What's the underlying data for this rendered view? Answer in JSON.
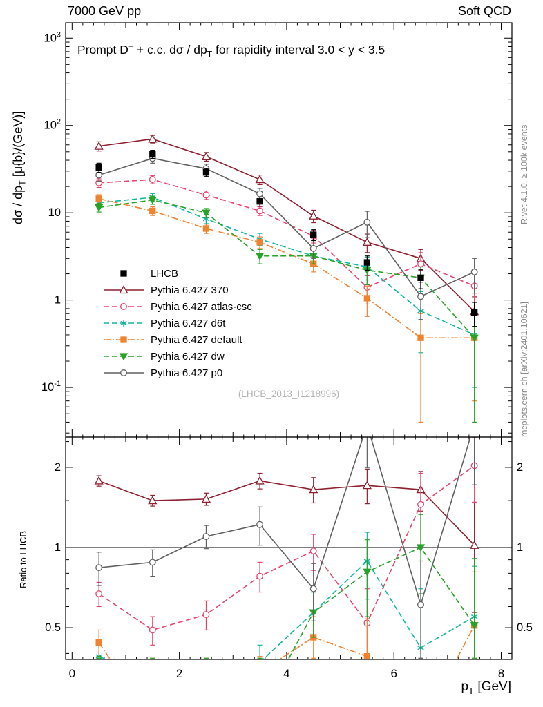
{
  "header": {
    "left": "7000 GeV pp",
    "right": "Soft QCD"
  },
  "side_notes": {
    "top": "Rivet 4.1.0, ≥ 100k events",
    "bottom": "mcplots.cern.ch [arXiv:2401.10621]"
  },
  "watermark": "(LHCB_2013_I1218996)",
  "title_parts": {
    "pre": "Prompt D",
    "sup": "+",
    "mid": " + c.c.  dσ / dp",
    "sub": "T",
    "post": " for rapidity interval 3.0 < y < 3.5"
  },
  "axes": {
    "ylabel_parts": {
      "pre": "dσ / dp",
      "sub": "T",
      "post": " [μ{b}/(GeV)]"
    },
    "xlabel_parts": {
      "pre": "p",
      "sub": "T",
      "post": " [GeV]"
    },
    "ratio_label": "Ratio to LHCB"
  },
  "chart_data": {
    "type": "line",
    "title": "Prompt D+ + c.c. dσ/dpT for rapidity interval 3.0 < y < 3.5",
    "xlabel": "pT [GeV]",
    "ylabel": "dσ/dpT [μ{b}/(GeV)]",
    "ratio_ylabel": "Ratio to LHCB",
    "yscale": "log",
    "ratio_yscale": "log",
    "grid": false,
    "legend_position": "inside-left-middle",
    "x": [
      0.5,
      1.5,
      2.5,
      3.5,
      4.5,
      5.5,
      6.5,
      7.5
    ],
    "xlim": [
      -0.12,
      8.2
    ],
    "ylim": [
      0.027,
      1500
    ],
    "ratio_ylim": [
      0.38,
      2.6
    ],
    "x_major_ticks": [
      0,
      2,
      4,
      6,
      8
    ],
    "y_major_decades": [
      -1,
      0,
      1,
      2,
      3
    ],
    "ratio_ticks": [
      0.5,
      1,
      2
    ],
    "reference": {
      "name": "LHCB",
      "color": "#000000",
      "marker": "square",
      "filled": true,
      "values": [
        33,
        47,
        29,
        13.5,
        5.6,
        2.7,
        1.8,
        0.72
      ],
      "yerr": [
        4,
        5,
        3,
        1.6,
        0.8,
        0.5,
        0.45,
        0.22
      ]
    },
    "series": [
      {
        "name": "Pythia 6.427 370",
        "color": "#8e1f2f",
        "line": "solid",
        "marker": "triangle-up",
        "filled": false,
        "values": [
          58,
          70,
          44,
          24,
          9.2,
          4.6,
          3.0,
          0.74
        ],
        "yerr": [
          7,
          7,
          5,
          3,
          1.5,
          1.1,
          0.8,
          0.35
        ],
        "ratio": [
          1.78,
          1.5,
          1.52,
          1.78,
          1.65,
          1.71,
          1.65,
          1.02
        ],
        "ratio_err": [
          0.08,
          0.07,
          0.08,
          0.12,
          0.18,
          0.25,
          0.28,
          0.45
        ]
      },
      {
        "name": "Pythia 6.427 atlas-csc",
        "color": "#e8446e",
        "line": "dashed",
        "marker": "circle",
        "filled": false,
        "values": [
          22,
          24,
          16,
          10.5,
          5.4,
          1.4,
          2.6,
          1.45
        ],
        "yerr": [
          2.5,
          2.5,
          1.8,
          1.2,
          0.9,
          0.5,
          0.9,
          0.75
        ],
        "ratio": [
          0.67,
          0.49,
          0.56,
          0.78,
          0.97,
          0.52,
          1.45,
          2.03
        ],
        "ratio_err": [
          0.07,
          0.06,
          0.07,
          0.1,
          0.15,
          0.18,
          0.45,
          0.55
        ]
      },
      {
        "name": "Pythia 6.427 d6t",
        "color": "#10b7a0",
        "line": "dashed",
        "marker": "asterisk",
        "filled": true,
        "values": [
          13,
          15,
          8.5,
          5.0,
          3.2,
          2.4,
          0.75,
          0.4
        ],
        "yerr": [
          1.5,
          1.6,
          1.0,
          0.8,
          0.6,
          0.7,
          0.5,
          0.3
        ],
        "ratio": [
          0.39,
          0.32,
          0.29,
          0.37,
          0.57,
          0.89,
          0.42,
          0.55
        ],
        "ratio_err": [
          0.05,
          0.04,
          0.04,
          0.06,
          0.11,
          0.25,
          0.28,
          0.3
        ]
      },
      {
        "name": "Pythia 6.427 default",
        "color": "#f08330",
        "line": "dashdot",
        "marker": "square",
        "filled": true,
        "values": [
          14.5,
          10.5,
          6.6,
          4.6,
          2.6,
          1.05,
          0.37,
          0.37
        ],
        "yerr": [
          1.6,
          1.2,
          0.8,
          0.7,
          0.5,
          0.4,
          0.33,
          0.3
        ],
        "ratio": [
          0.44,
          0.22,
          0.23,
          0.34,
          0.46,
          0.39,
          0.21,
          0.51
        ],
        "ratio_err": [
          0.05,
          0.03,
          0.03,
          0.05,
          0.09,
          0.15,
          0.17,
          0.3
        ]
      },
      {
        "name": "Pythia 6.427 dw",
        "color": "#27a327",
        "line": "dashed",
        "marker": "triangle-down",
        "filled": true,
        "values": [
          11.5,
          14,
          10,
          3.2,
          3.2,
          2.2,
          1.8,
          0.37
        ],
        "yerr": [
          1.3,
          1.5,
          1.2,
          0.6,
          0.6,
          0.7,
          0.6,
          0.33
        ],
        "ratio": [
          0.35,
          0.3,
          0.34,
          0.24,
          0.57,
          0.81,
          1.0,
          0.51
        ],
        "ratio_err": [
          0.04,
          0.04,
          0.04,
          0.05,
          0.11,
          0.26,
          0.33,
          0.4
        ]
      },
      {
        "name": "Pythia 6.427 p0",
        "color": "#606060",
        "line": "solid",
        "marker": "circle",
        "filled": false,
        "values": [
          27,
          42,
          32,
          16.5,
          3.9,
          7.8,
          1.1,
          2.1
        ],
        "yerr": [
          4,
          5,
          4,
          2.5,
          0.9,
          2.6,
          0.5,
          0.9
        ],
        "ratio": [
          0.84,
          0.88,
          1.1,
          1.22,
          0.7,
          2.89,
          0.61,
          2.92
        ],
        "ratio_err": [
          0.12,
          0.1,
          0.11,
          0.2,
          0.17,
          0.9,
          0.28,
          1.2
        ]
      }
    ]
  }
}
